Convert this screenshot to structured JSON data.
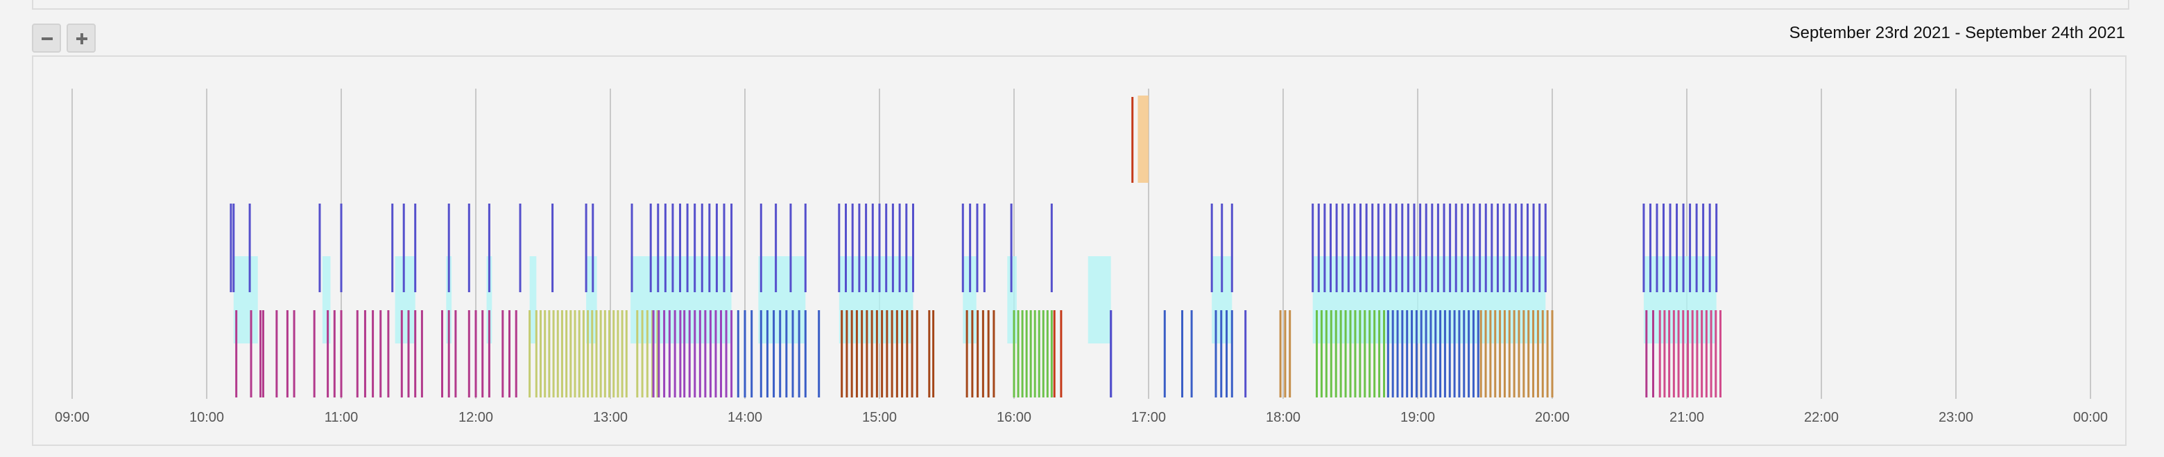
{
  "header": {
    "date_range": "September 23rd 2021 - September 24th 2021"
  },
  "zoom": {
    "out_icon": "minus-icon",
    "in_icon": "plus-icon"
  },
  "timeline": {
    "axis_start": "09:00",
    "axis_end": "00:00",
    "ticks": [
      "09:00",
      "10:00",
      "11:00",
      "12:00",
      "13:00",
      "14:00",
      "15:00",
      "16:00",
      "17:00",
      "18:00",
      "19:00",
      "20:00",
      "21:00",
      "22:00",
      "23:00",
      "00:00"
    ],
    "colors": {
      "purple_blue": "#5550cc",
      "cyan": "#b0f4f6",
      "magenta": "#b23a8c",
      "olive": "#c4cc72",
      "purple": "#9a44bb",
      "blue": "#3a5ec6",
      "brown": "#a4471a",
      "green": "#6cc24a",
      "tan": "#c48e4a",
      "pink": "#d04c8c",
      "orange": "#f6c88a",
      "red": "#c43a1a"
    }
  }
}
